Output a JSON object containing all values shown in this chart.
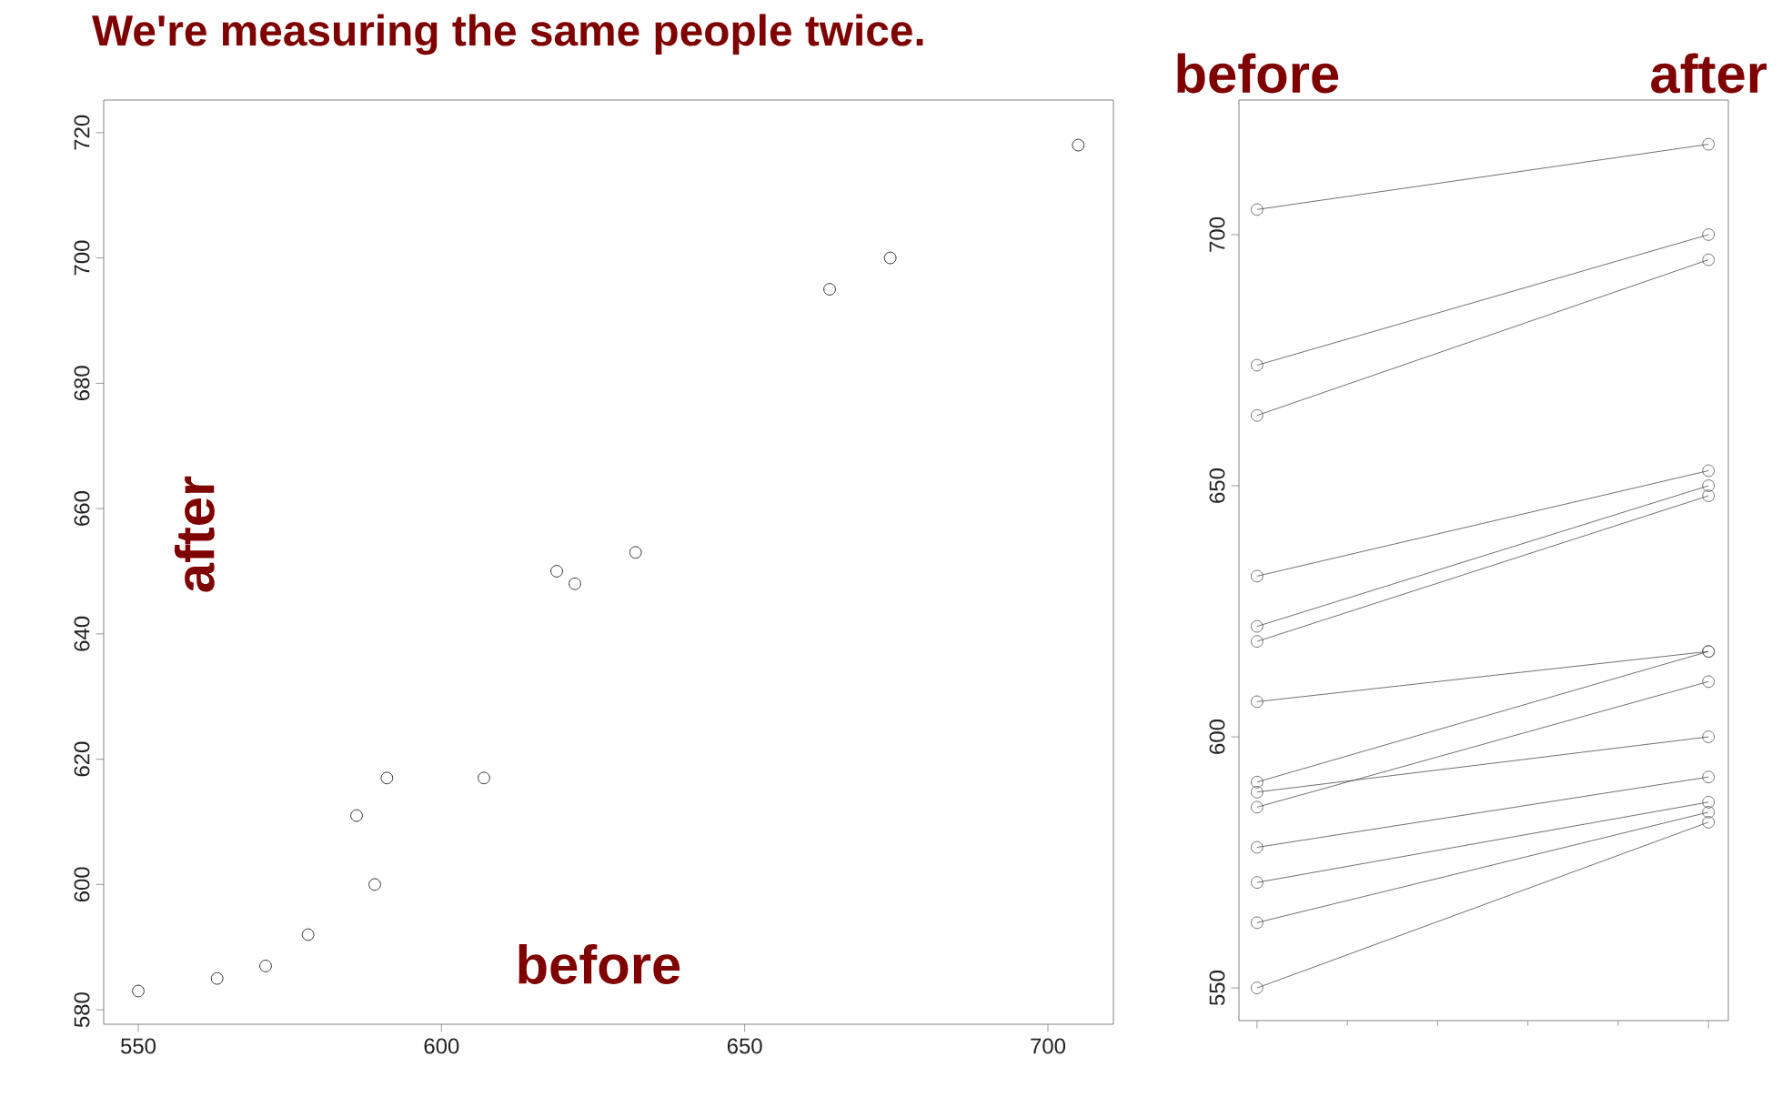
{
  "chart_data": [
    {
      "type": "scatter",
      "title": "We're measuring the same people twice.",
      "xlabel": "before",
      "ylabel": "after",
      "marker": "circle",
      "color": "#000000",
      "x": [
        550,
        563,
        571,
        578,
        586,
        589,
        591,
        607,
        619,
        622,
        632,
        664,
        674,
        705
      ],
      "values": [
        583,
        585,
        587,
        592,
        611,
        600,
        617,
        617,
        650,
        648,
        653,
        695,
        700,
        718
      ],
      "xlim": [
        544.3,
        710.8
      ],
      "ylim": [
        577.7,
        725.2
      ],
      "xticks": [
        550,
        600,
        650,
        700
      ],
      "yticks": [
        580,
        600,
        620,
        640,
        660,
        680,
        700,
        720
      ]
    },
    {
      "type": "line",
      "marker": "circle",
      "categories": [
        "before",
        "after"
      ],
      "ylim": [
        543.5,
        726.8
      ],
      "yticks": [
        550,
        600,
        650,
        700
      ],
      "series": [
        {
          "color": "#4d4d4d",
          "values": [
            705,
            718
          ]
        },
        {
          "color": "#4d4d4d",
          "values": [
            674,
            700
          ]
        },
        {
          "color": "#4d4d4d",
          "values": [
            664,
            695
          ]
        },
        {
          "color": "#4d4d4d",
          "values": [
            632,
            653
          ]
        },
        {
          "color": "#4d4d4d",
          "values": [
            622,
            650
          ]
        },
        {
          "color": "#4d4d4d",
          "values": [
            619,
            648
          ]
        },
        {
          "color": "#4d4d4d",
          "values": [
            607,
            617
          ]
        },
        {
          "color": "#4d4d4d",
          "values": [
            591,
            617
          ]
        },
        {
          "color": "#4d4d4d",
          "values": [
            589,
            600
          ]
        },
        {
          "color": "#4d4d4d",
          "values": [
            586,
            611
          ]
        },
        {
          "color": "#4d4d4d",
          "values": [
            578,
            592
          ]
        },
        {
          "color": "#4d4d4d",
          "values": [
            571,
            587
          ]
        },
        {
          "color": "#4d4d4d",
          "values": [
            563,
            585
          ]
        },
        {
          "color": "#4d4d4d",
          "values": [
            550,
            583
          ]
        }
      ]
    }
  ]
}
